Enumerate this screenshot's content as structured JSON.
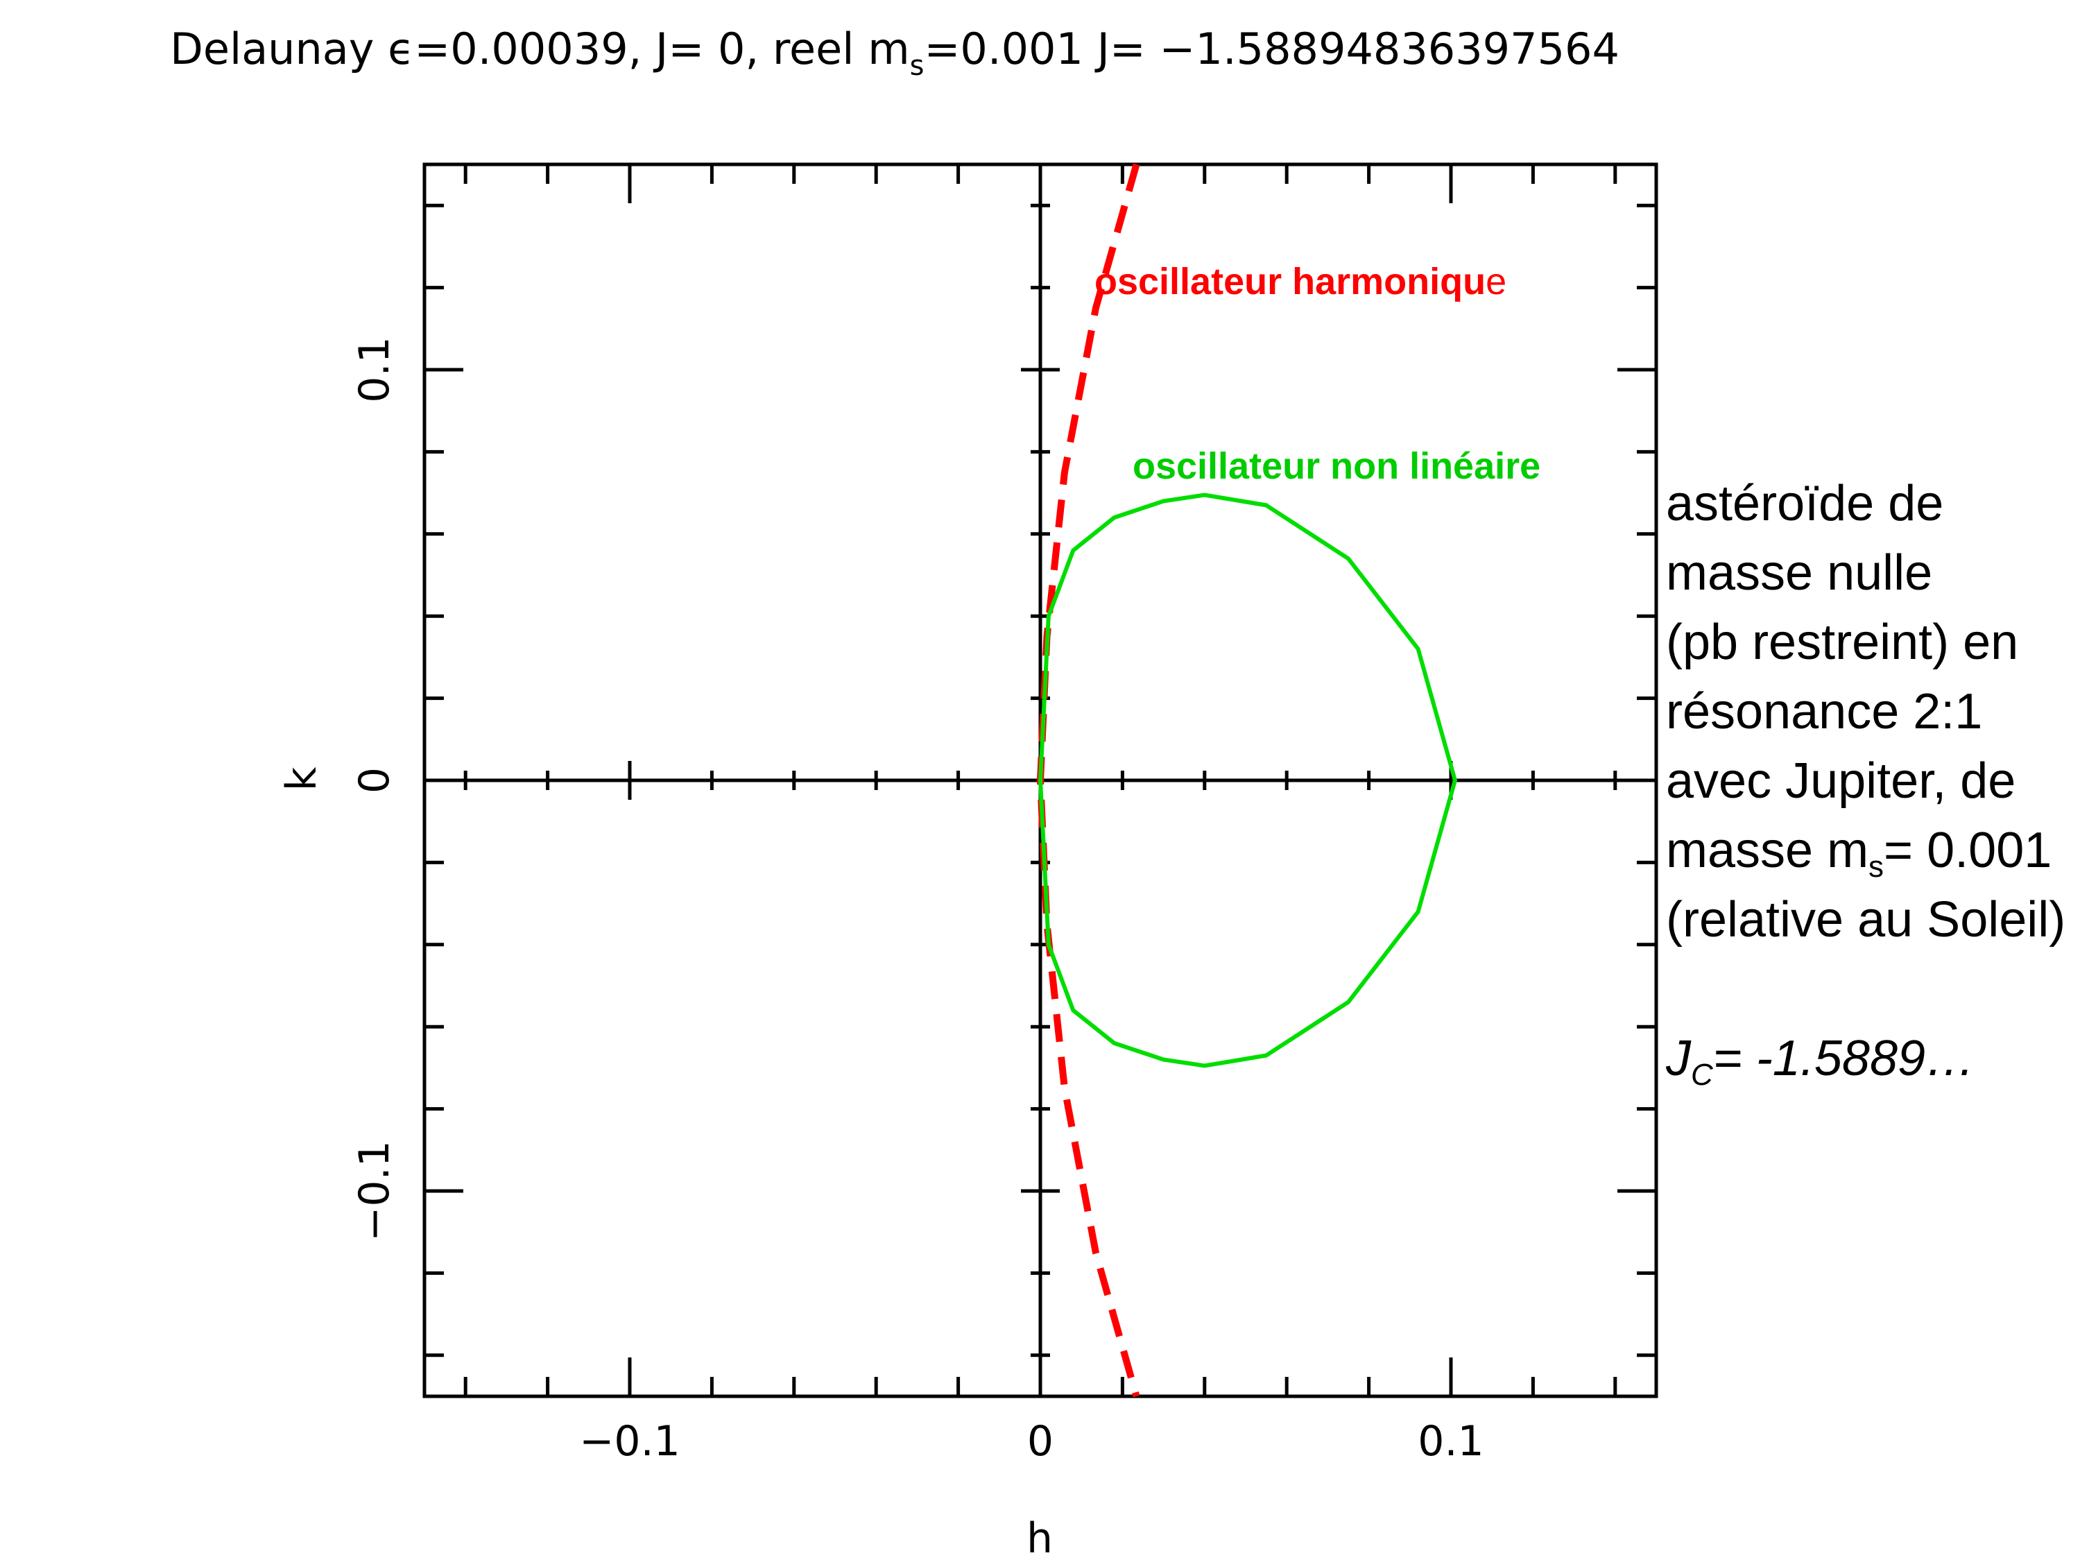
{
  "chart_data": {
    "type": "line",
    "title": {
      "prefix": "Delaunay ϵ=0.00039, J= 0, reel m",
      "sub": "s",
      "suffix": "=0.001 J= −1.58894836397564"
    },
    "xlabel": "h",
    "ylabel": "k",
    "xlim": [
      -0.15,
      0.15
    ],
    "ylim": [
      -0.15,
      0.15
    ],
    "x_ticks": [
      {
        "value": -0.1,
        "label": "−0.1"
      },
      {
        "value": 0,
        "label": "0"
      },
      {
        "value": 0.1,
        "label": "0.1"
      }
    ],
    "y_ticks": [
      {
        "value": -0.1,
        "label": "−0.1"
      },
      {
        "value": 0,
        "label": "0"
      },
      {
        "value": 0.1,
        "label": "0.1"
      }
    ],
    "series": [
      {
        "name": "oscillateur harmonique",
        "color": "#ff0000",
        "style": "dashed",
        "x": [
          0.0234,
          0.0135,
          0.0059,
          0.0016,
          0.0,
          0.0016,
          0.0059,
          0.0135,
          0.0234
        ],
        "y": [
          0.15,
          0.115,
          0.075,
          0.035,
          0.0,
          -0.035,
          -0.075,
          -0.115,
          -0.15
        ]
      },
      {
        "name": "oscillateur non linéaire",
        "color": "#00dd00",
        "style": "solid",
        "x": [
          0.0,
          0.002,
          0.008,
          0.018,
          0.03,
          0.04,
          0.055,
          0.075,
          0.092,
          0.101,
          0.092,
          0.075,
          0.055,
          0.04,
          0.03,
          0.018,
          0.008,
          0.002,
          0.0
        ],
        "y": [
          0.0,
          0.04,
          0.056,
          0.064,
          0.068,
          0.0695,
          0.067,
          0.054,
          0.032,
          0.0,
          -0.032,
          -0.054,
          -0.067,
          -0.0695,
          -0.068,
          -0.064,
          -0.056,
          -0.04,
          0.0
        ]
      }
    ],
    "annotations": {
      "harmonic_main": "oscillateur harmoniqu",
      "harmonic_tail": "e",
      "nonlinear": "oscillateur non linéaire"
    },
    "grid": false
  },
  "side_note": {
    "line1": "astéroïde de",
    "line2": "masse nulle",
    "line3": "(pb restreint) en",
    "line4": "résonance 2:1",
    "line5": "avec Jupiter, de",
    "line6_prefix": "masse m",
    "line6_sub": "s",
    "line6_suffix": "= 0.001",
    "line7": "(relative au Soleil)",
    "jc_prefix": "J",
    "jc_sub": "C",
    "jc_suffix": "= -1.5889…"
  }
}
